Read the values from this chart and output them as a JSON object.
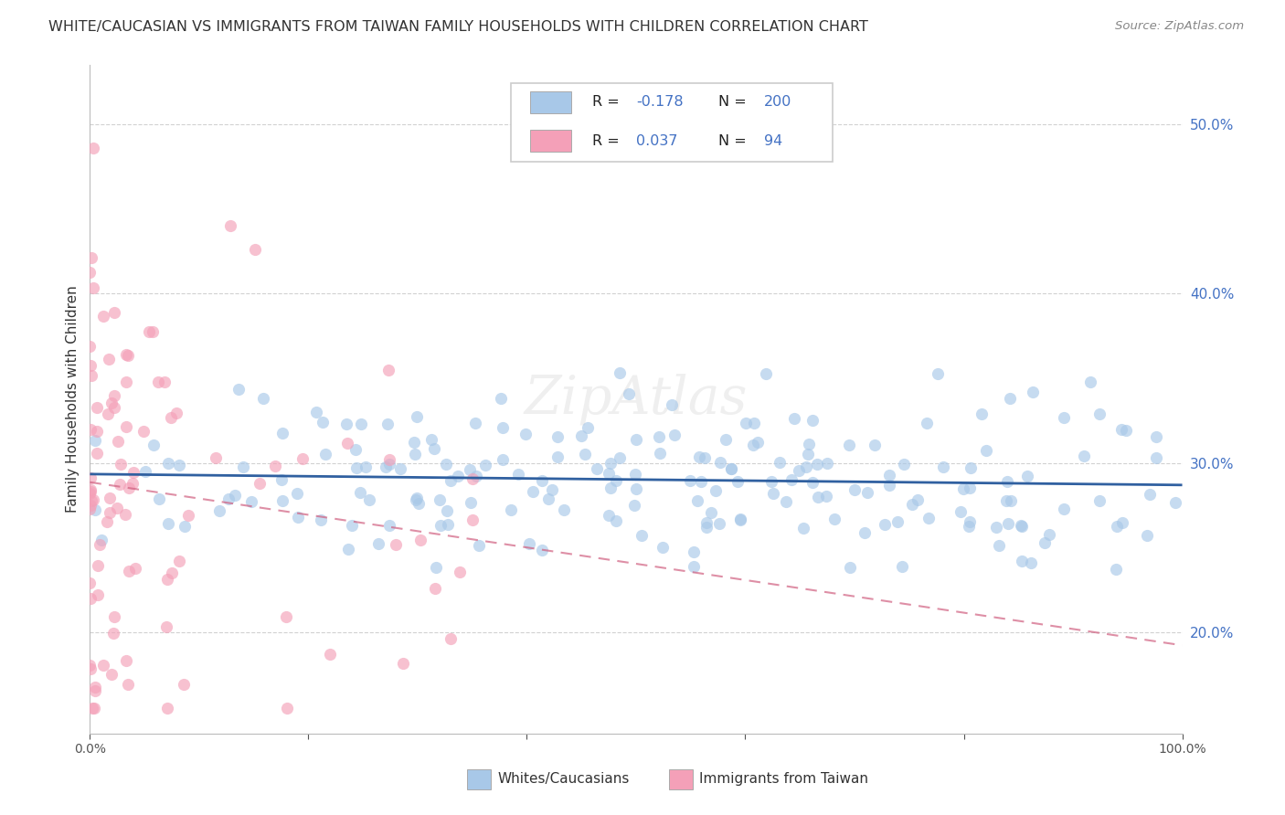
{
  "title": "WHITE/CAUCASIAN VS IMMIGRANTS FROM TAIWAN FAMILY HOUSEHOLDS WITH CHILDREN CORRELATION CHART",
  "source": "Source: ZipAtlas.com",
  "ylabel": "Family Households with Children",
  "legend_blue_r": "-0.178",
  "legend_blue_n": "200",
  "legend_pink_r": "0.037",
  "legend_pink_n": "94",
  "blue_color": "#a8c8e8",
  "pink_color": "#f4a0b8",
  "trend_blue_color": "#3060a0",
  "trend_pink_color": "#d06080",
  "trend_pink_dash": [
    6,
    4
  ],
  "background_color": "#ffffff",
  "grid_color": "#cccccc",
  "xlim": [
    0.0,
    1.0
  ],
  "ylim": [
    0.14,
    0.535
  ],
  "yticks": [
    0.2,
    0.3,
    0.4,
    0.5
  ],
  "figsize": [
    14.06,
    8.92
  ],
  "dpi": 100,
  "blue_seed": 42,
  "pink_seed": 7,
  "blue_R": -0.178,
  "blue_N": 200,
  "pink_R": 0.037,
  "pink_N": 94,
  "label_color": "#4472c4",
  "text_color": "#333333"
}
